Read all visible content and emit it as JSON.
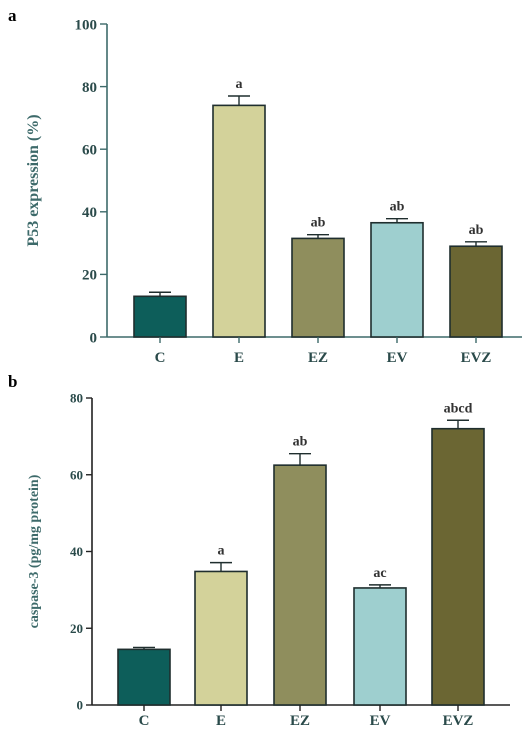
{
  "chart_data": [
    {
      "panel": "a",
      "type": "bar",
      "categories": [
        "C",
        "E",
        "EZ",
        "EV",
        "EVZ"
      ],
      "values": [
        13,
        74,
        31.5,
        36.5,
        29
      ],
      "errors": [
        1.3,
        3,
        1.2,
        1.3,
        1.4
      ],
      "significance": [
        "",
        "a",
        "ab",
        "ab",
        "ab"
      ],
      "colors": [
        "#0d5e5a",
        "#d3d29a",
        "#8f8e5d",
        "#9ecfcf",
        "#6b6633"
      ],
      "ylabel": "P53 expression (%)",
      "ylim": [
        0,
        100
      ],
      "yticks": [
        0,
        20,
        40,
        60,
        80,
        100
      ]
    },
    {
      "panel": "b",
      "type": "bar",
      "categories": [
        "C",
        "E",
        "EZ",
        "EV",
        "EVZ"
      ],
      "values": [
        14.5,
        34.8,
        62.5,
        30.5,
        72
      ],
      "errors": [
        0.5,
        2.3,
        3,
        0.8,
        2.2
      ],
      "significance": [
        "",
        "a",
        "ab",
        "ac",
        "abcd"
      ],
      "colors": [
        "#0d5e5a",
        "#d3d29a",
        "#8f8e5d",
        "#9ecfcf",
        "#6b6633"
      ],
      "ylabel": "caspase-3 (pg/mg protein)",
      "ylim": [
        0,
        80
      ],
      "yticks": [
        0,
        20,
        40,
        60,
        80
      ]
    }
  ]
}
